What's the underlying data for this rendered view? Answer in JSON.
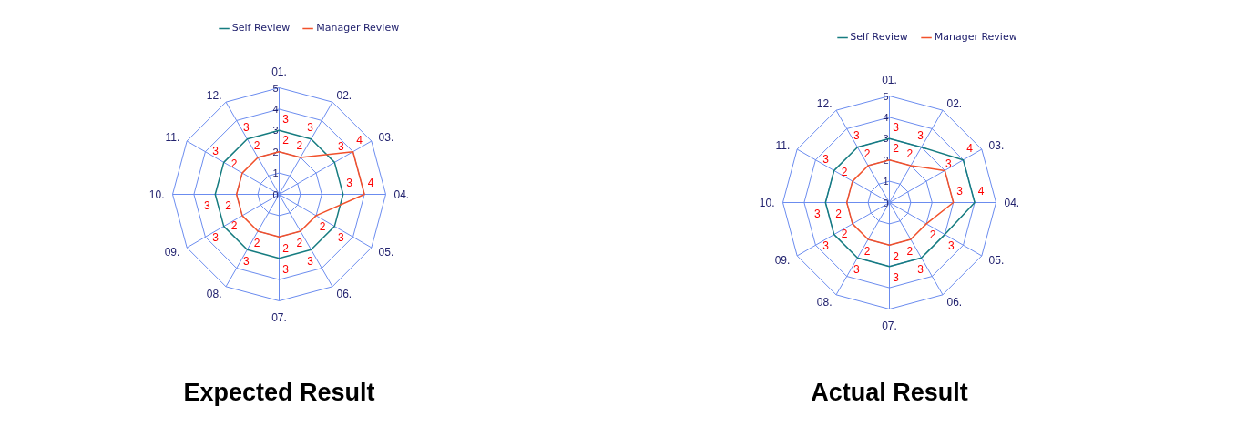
{
  "chart_data": [
    {
      "type": "radar",
      "title": "Expected Result",
      "categories": [
        "01.",
        "02.",
        "03.",
        "04.",
        "05.",
        "06.",
        "07.",
        "08.",
        "09.",
        "10.",
        "11.",
        "12."
      ],
      "series": [
        {
          "name": "Self Review",
          "color": "#167c80",
          "values": [
            3,
            3,
            3,
            3,
            3,
            3,
            3,
            3,
            3,
            3,
            3,
            3
          ]
        },
        {
          "name": "Manager Review",
          "color": "#f2512b",
          "values": [
            2,
            2,
            4,
            4,
            2,
            2,
            2,
            2,
            2,
            2,
            2,
            2
          ]
        }
      ],
      "ylim": [
        0,
        5
      ],
      "yticks": [
        0,
        1,
        2,
        3,
        4,
        5
      ],
      "grid": true,
      "legend": "top",
      "data_labels": true
    },
    {
      "type": "radar",
      "title": "Actual Result",
      "categories": [
        "01.",
        "02.",
        "03.",
        "04.",
        "05.",
        "06.",
        "07.",
        "08.",
        "09.",
        "10.",
        "11.",
        "12."
      ],
      "series": [
        {
          "name": "Self Review",
          "color": "#167c80",
          "values": [
            3,
            3,
            4,
            4,
            3,
            3,
            3,
            3,
            3,
            3,
            3,
            3
          ]
        },
        {
          "name": "Manager Review",
          "color": "#f2512b",
          "values": [
            2,
            2,
            3,
            3,
            2,
            2,
            2,
            2,
            2,
            2,
            2,
            2
          ]
        }
      ],
      "ylim": [
        0,
        5
      ],
      "yticks": [
        0,
        1,
        2,
        3,
        4,
        5
      ],
      "grid": true,
      "legend": "top",
      "data_labels": true
    }
  ]
}
